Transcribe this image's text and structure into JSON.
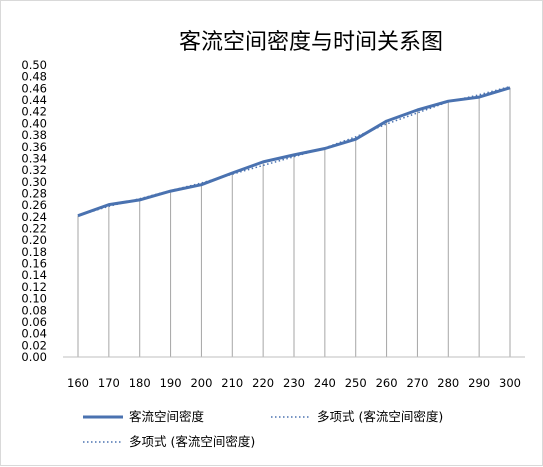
{
  "chart_data": {
    "type": "line",
    "title": "客流空间密度与时间关系图",
    "xlabel": "",
    "ylabel": "",
    "categories": [
      160,
      170,
      180,
      190,
      200,
      210,
      220,
      230,
      240,
      250,
      260,
      270,
      280,
      290,
      300
    ],
    "ylim": [
      0,
      0.5
    ],
    "ytick_step": 0.02,
    "grid": "vertical drop lines at each category",
    "legend_position": "bottom",
    "series": [
      {
        "name": "客流空间密度",
        "style": "solid",
        "color": "#4a72b0",
        "values": [
          0.242,
          0.261,
          0.269,
          0.284,
          0.295,
          0.315,
          0.334,
          0.346,
          0.357,
          0.373,
          0.404,
          0.423,
          0.438,
          0.445,
          0.461
        ]
      },
      {
        "name": "多项式 (客流空间密度)",
        "style": "dotted",
        "color": "#4a72b0",
        "values": [
          0.242,
          0.258,
          0.271,
          0.285,
          0.298,
          0.313,
          0.328,
          0.343,
          0.358,
          0.377,
          0.399,
          0.418,
          0.437,
          0.449,
          0.463
        ]
      },
      {
        "name": "多项式 (客流空间密度)",
        "style": "dotted",
        "color": "#4a72b0",
        "values": [
          0.242,
          0.258,
          0.271,
          0.285,
          0.298,
          0.313,
          0.328,
          0.343,
          0.358,
          0.377,
          0.399,
          0.418,
          0.437,
          0.449,
          0.463
        ]
      }
    ]
  }
}
